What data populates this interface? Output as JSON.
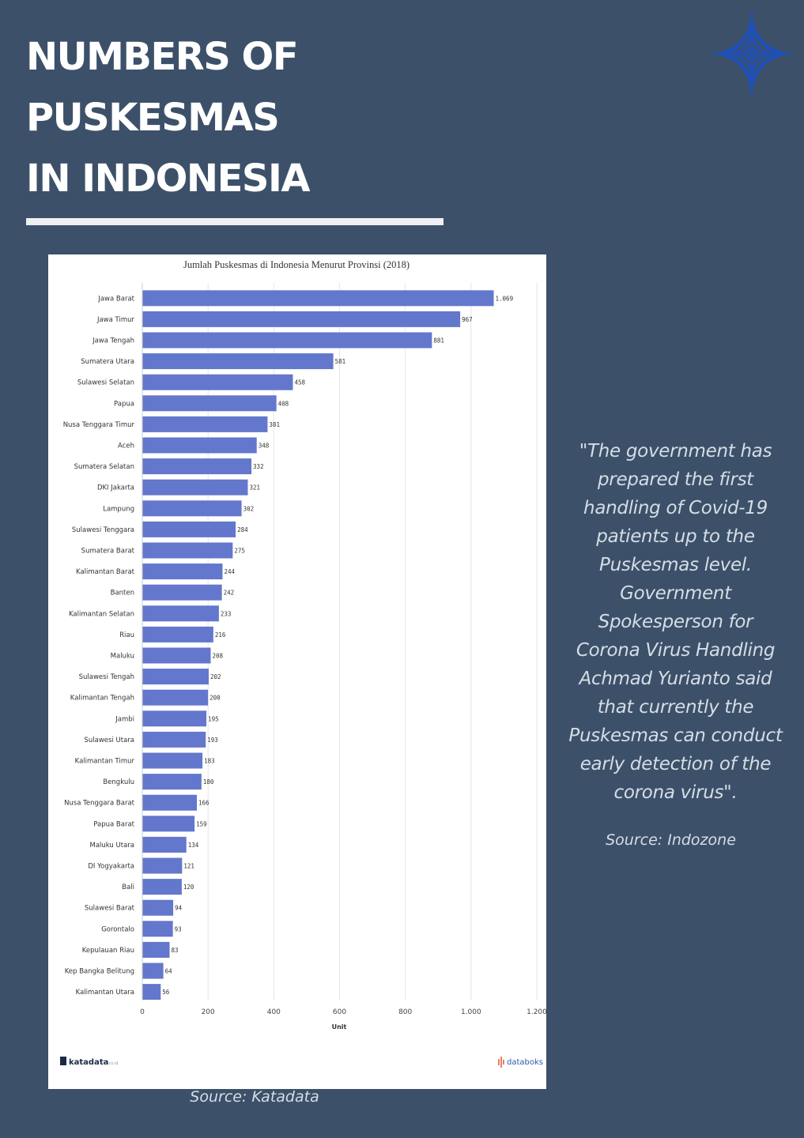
{
  "header": {
    "title_lines": [
      "NUMBERS OF",
      "PUSKESMAS",
      "IN INDONESIA"
    ]
  },
  "logo": {
    "icon": "compass-star-logo",
    "color": "#1f4fb8"
  },
  "colors": {
    "background": "#3c5169",
    "bar": "#6377cc",
    "card": "#ffffff"
  },
  "chart_data": {
    "type": "bar",
    "orientation": "horizontal",
    "title": "Jumlah Puskesmas di Indonesia Menurut Provinsi (2018)",
    "xlabel": "Unit",
    "xlim": [
      0,
      1200
    ],
    "xticks": [
      0,
      200,
      400,
      600,
      800,
      1000,
      1200
    ],
    "xtick_labels": [
      "0",
      "200",
      "400",
      "600",
      "800",
      "1.000",
      "1.200"
    ],
    "grid": true,
    "categories": [
      "Jawa Barat",
      "Jawa Timur",
      "Jawa Tengah",
      "Sumatera Utara",
      "Sulawesi Selatan",
      "Papua",
      "Nusa Tenggara Timur",
      "Aceh",
      "Sumatera Selatan",
      "DKI Jakarta",
      "Lampung",
      "Sulawesi Tenggara",
      "Sumatera Barat",
      "Kalimantan Barat",
      "Banten",
      "Kalimantan Selatan",
      "Riau",
      "Maluku",
      "Sulawesi Tengah",
      "Kalimantan Tengah",
      "Jambi",
      "Sulawesi Utara",
      "Kalimantan Timur",
      "Bengkulu",
      "Nusa Tenggara Barat",
      "Papua Barat",
      "Maluku Utara",
      "DI Yogyakarta",
      "Bali",
      "Sulawesi Barat",
      "Gorontalo",
      "Kepulauan Riau",
      "Kep Bangka Belitung",
      "Kalimantan Utara"
    ],
    "values": [
      1069,
      967,
      881,
      581,
      458,
      408,
      381,
      348,
      332,
      321,
      302,
      284,
      275,
      244,
      242,
      233,
      216,
      208,
      202,
      200,
      195,
      193,
      183,
      180,
      166,
      159,
      134,
      121,
      120,
      94,
      93,
      83,
      64,
      56
    ],
    "value_labels": [
      "1.069",
      "967",
      "881",
      "581",
      "458",
      "408",
      "381",
      "348",
      "332",
      "321",
      "302",
      "284",
      "275",
      "244",
      "242",
      "233",
      "216",
      "208",
      "202",
      "200",
      "195",
      "193",
      "183",
      "180",
      "166",
      "159",
      "134",
      "121",
      "120",
      "94",
      "93",
      "83",
      "64",
      "56"
    ],
    "footer_left": "katadata",
    "footer_left_suffix": ".co.id",
    "footer_right": "databoks"
  },
  "quote": {
    "lines": [
      "\"The government has",
      "prepared the first",
      "handling of Covid-19",
      "patients up to the",
      "Puskesmas level.",
      "Government",
      "Spokesperson for",
      "Corona Virus Handling",
      "Achmad Yurianto said",
      "that currently the",
      "Puskesmas can conduct",
      "early detection of the",
      "corona virus\"."
    ],
    "source": "Source: Indozone"
  },
  "chart_source": "Source: Katadata"
}
